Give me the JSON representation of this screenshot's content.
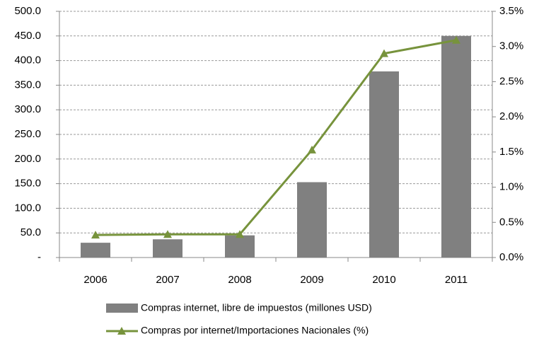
{
  "chart_data": {
    "type": "bar",
    "categories": [
      "2006",
      "2007",
      "2008",
      "2009",
      "2010",
      "2011"
    ],
    "series": [
      {
        "name": "Compras internet, libre de impuestos (millones USD)",
        "type": "bar",
        "color": "#808080",
        "values": [
          30,
          37,
          45,
          153,
          378,
          450
        ]
      },
      {
        "name": "Compras por internet/Importaciones Nacionales (%)",
        "type": "line",
        "color": "#77933c",
        "axis": "y2",
        "values": [
          0.32,
          0.33,
          0.33,
          1.53,
          2.9,
          3.09
        ]
      }
    ],
    "ylim": [
      0,
      500
    ],
    "yticks": [
      {
        "value": 0,
        "label": "-"
      },
      {
        "value": 50,
        "label": "50.0"
      },
      {
        "value": 100,
        "label": "100.0"
      },
      {
        "value": 150,
        "label": "150.0"
      },
      {
        "value": 200,
        "label": "200.0"
      },
      {
        "value": 250,
        "label": "250.0"
      },
      {
        "value": 300,
        "label": "300.0"
      },
      {
        "value": 350,
        "label": "350.0"
      },
      {
        "value": 400,
        "label": "400.0"
      },
      {
        "value": 450,
        "label": "450.0"
      },
      {
        "value": 500,
        "label": "500.0"
      }
    ],
    "y2lim": [
      0,
      3.5
    ],
    "y2ticks": [
      {
        "value": 0,
        "label": "0.0%"
      },
      {
        "value": 0.5,
        "label": "0.5%"
      },
      {
        "value": 1,
        "label": "1.0%"
      },
      {
        "value": 1.5,
        "label": "1.5%"
      },
      {
        "value": 2,
        "label": "2.0%"
      },
      {
        "value": 2.5,
        "label": "2.5%"
      },
      {
        "value": 3,
        "label": "3.0%"
      },
      {
        "value": 3.5,
        "label": "3.5%"
      }
    ],
    "grid": true,
    "legend": "bottom"
  }
}
